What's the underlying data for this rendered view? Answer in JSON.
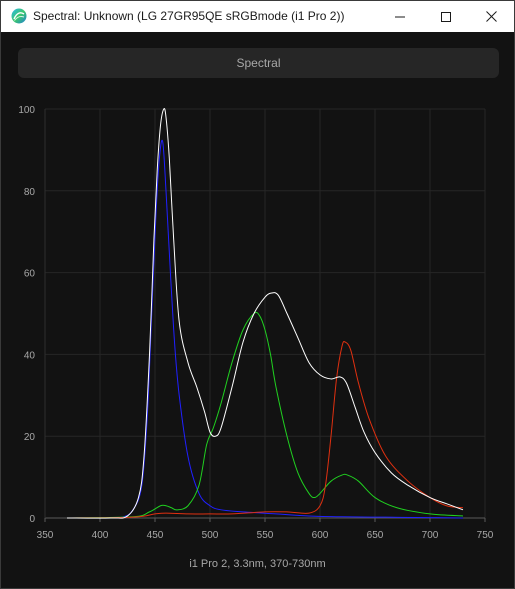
{
  "window": {
    "title": "Spectral: Unknown (LG 27GR95QE sRGBmode (i1 Pro 2))",
    "icons": {
      "app": "spectral-app-icon",
      "minimize": "minimize-icon",
      "maximize": "maximize-icon",
      "close": "close-icon"
    }
  },
  "tab": {
    "label": "Spectral"
  },
  "footer": {
    "label": "i1 Pro 2, 3.3nm, 370-730nm"
  },
  "chart_data": {
    "type": "line",
    "title": "",
    "xlabel": "",
    "ylabel": "",
    "xlim": [
      350,
      750
    ],
    "ylim": [
      0,
      100
    ],
    "x_ticks": [
      350,
      400,
      450,
      500,
      550,
      600,
      650,
      700,
      750
    ],
    "y_ticks": [
      0,
      20,
      40,
      60,
      80,
      100
    ],
    "grid": true,
    "series": [
      {
        "color": "#2020ff",
        "points": [
          [
            370,
            0
          ],
          [
            400,
            0
          ],
          [
            420,
            0.2
          ],
          [
            430,
            2
          ],
          [
            438,
            8
          ],
          [
            443,
            25
          ],
          [
            447,
            50
          ],
          [
            451,
            75
          ],
          [
            454,
            88
          ],
          [
            457,
            92
          ],
          [
            460,
            80
          ],
          [
            464,
            60
          ],
          [
            468,
            42
          ],
          [
            472,
            30
          ],
          [
            480,
            15
          ],
          [
            490,
            6
          ],
          [
            500,
            3
          ],
          [
            510,
            2
          ],
          [
            530,
            1.5
          ],
          [
            560,
            1
          ],
          [
            590,
            0.5
          ],
          [
            620,
            0.3
          ],
          [
            660,
            0.2
          ],
          [
            700,
            0.1
          ],
          [
            730,
            0
          ]
        ]
      },
      {
        "color": "#20d020",
        "points": [
          [
            370,
            0
          ],
          [
            430,
            0.3
          ],
          [
            445,
            1.5
          ],
          [
            455,
            3
          ],
          [
            460,
            3
          ],
          [
            465,
            2.5
          ],
          [
            470,
            2
          ],
          [
            480,
            3
          ],
          [
            490,
            8
          ],
          [
            497,
            18
          ],
          [
            503,
            22
          ],
          [
            510,
            28
          ],
          [
            520,
            38
          ],
          [
            530,
            46
          ],
          [
            540,
            50
          ],
          [
            545,
            49.5
          ],
          [
            550,
            46
          ],
          [
            555,
            40
          ],
          [
            560,
            32
          ],
          [
            570,
            20
          ],
          [
            580,
            11
          ],
          [
            590,
            6
          ],
          [
            595,
            5
          ],
          [
            600,
            6
          ],
          [
            610,
            9
          ],
          [
            620,
            10.5
          ],
          [
            625,
            10.5
          ],
          [
            635,
            9
          ],
          [
            650,
            5
          ],
          [
            670,
            2.5
          ],
          [
            700,
            1
          ],
          [
            730,
            0.5
          ]
        ]
      },
      {
        "color": "#e03010",
        "points": [
          [
            370,
            0
          ],
          [
            430,
            0.2
          ],
          [
            450,
            1
          ],
          [
            460,
            1.2
          ],
          [
            480,
            1
          ],
          [
            500,
            1
          ],
          [
            520,
            1
          ],
          [
            550,
            1.5
          ],
          [
            570,
            1.5
          ],
          [
            590,
            1.2
          ],
          [
            600,
            3
          ],
          [
            605,
            8
          ],
          [
            610,
            20
          ],
          [
            615,
            34
          ],
          [
            620,
            42
          ],
          [
            623,
            43
          ],
          [
            628,
            41
          ],
          [
            635,
            33
          ],
          [
            645,
            24
          ],
          [
            660,
            15
          ],
          [
            680,
            9
          ],
          [
            700,
            5
          ],
          [
            715,
            3
          ],
          [
            730,
            2.5
          ]
        ]
      },
      {
        "color": "#ffffff",
        "points": [
          [
            370,
            0
          ],
          [
            410,
            0
          ],
          [
            425,
            0.5
          ],
          [
            435,
            5
          ],
          [
            440,
            15
          ],
          [
            445,
            40
          ],
          [
            449,
            68
          ],
          [
            452,
            85
          ],
          [
            455,
            96
          ],
          [
            458,
            100
          ],
          [
            460,
            98
          ],
          [
            463,
            88
          ],
          [
            467,
            68
          ],
          [
            472,
            48
          ],
          [
            480,
            38
          ],
          [
            488,
            32
          ],
          [
            495,
            26
          ],
          [
            500,
            21
          ],
          [
            505,
            20
          ],
          [
            510,
            22
          ],
          [
            520,
            32
          ],
          [
            530,
            43
          ],
          [
            540,
            50
          ],
          [
            550,
            54
          ],
          [
            556,
            55
          ],
          [
            562,
            54.5
          ],
          [
            570,
            50
          ],
          [
            580,
            44
          ],
          [
            590,
            38
          ],
          [
            600,
            35
          ],
          [
            610,
            34
          ],
          [
            618,
            34.5
          ],
          [
            624,
            33
          ],
          [
            632,
            27
          ],
          [
            640,
            21
          ],
          [
            650,
            16
          ],
          [
            665,
            11
          ],
          [
            680,
            8
          ],
          [
            700,
            5
          ],
          [
            715,
            3.5
          ],
          [
            730,
            2
          ]
        ]
      }
    ]
  }
}
